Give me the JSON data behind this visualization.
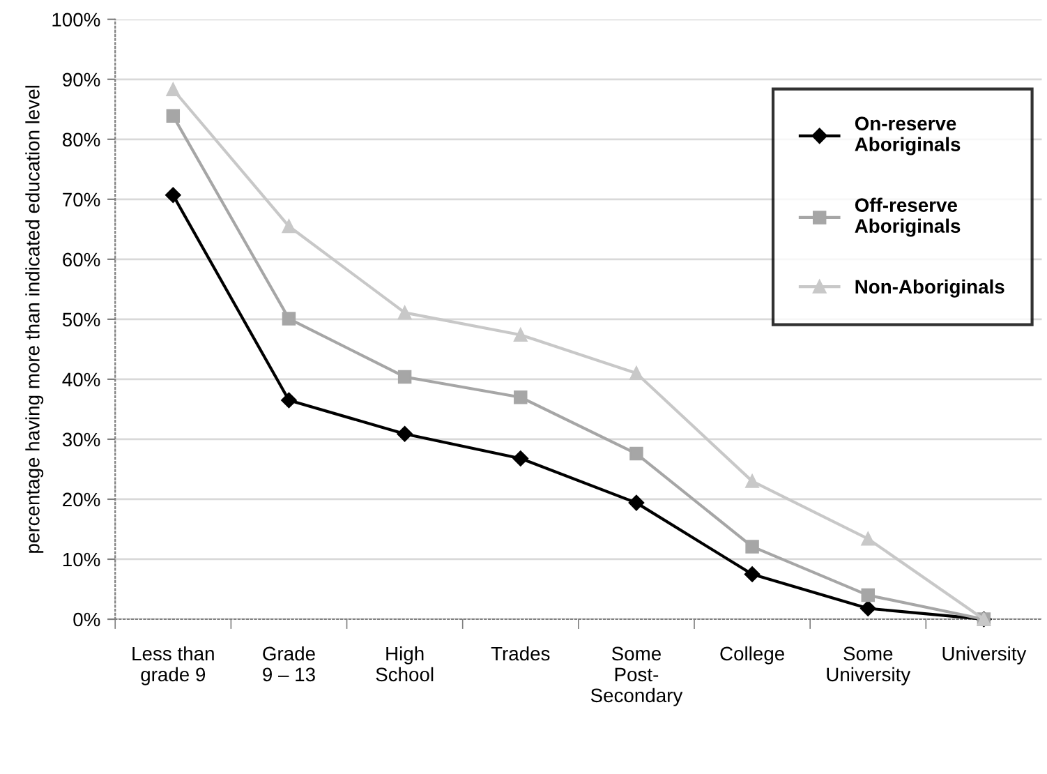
{
  "chart_data": {
    "type": "line",
    "ylabel": "percentage having more than indicated education level",
    "categories": [
      "Less than\ngrade 9",
      "Grade\n9 – 13",
      "High\nSchool",
      "Trades",
      "Some\nPost-\nSecondary",
      "College",
      "Some\nUniversity",
      "University"
    ],
    "series": [
      {
        "name": "On-reserve\nAboriginals",
        "color": "#000000",
        "marker": "diamond",
        "values": [
          70.7,
          36.5,
          30.9,
          26.8,
          19.4,
          7.5,
          1.8,
          0
        ]
      },
      {
        "name": "Off-reserve\nAboriginals",
        "color": "#a6a6a6",
        "marker": "square",
        "values": [
          83.9,
          50.1,
          40.4,
          37.0,
          27.6,
          12.1,
          4.0,
          0
        ]
      },
      {
        "name": "Non-Aboriginals",
        "color": "#c8c8c8",
        "marker": "triangle",
        "values": [
          88.3,
          65.5,
          51.1,
          47.4,
          41.0,
          23.0,
          13.4,
          0
        ]
      }
    ],
    "ylim": [
      0,
      100
    ],
    "yticks": [
      {
        "value": 0,
        "label": "0%"
      },
      {
        "value": 10,
        "label": "10%"
      },
      {
        "value": 20,
        "label": "20%"
      },
      {
        "value": 30,
        "label": "30%"
      },
      {
        "value": 40,
        "label": "40%"
      },
      {
        "value": 50,
        "label": "50%"
      },
      {
        "value": 60,
        "label": "60%"
      },
      {
        "value": 70,
        "label": "70%"
      },
      {
        "value": 80,
        "label": "80%"
      },
      {
        "value": 90,
        "label": "90%"
      },
      {
        "value": 100,
        "label": "100%"
      }
    ],
    "grid": "y",
    "legend": "top right",
    "line_style": "solid"
  }
}
